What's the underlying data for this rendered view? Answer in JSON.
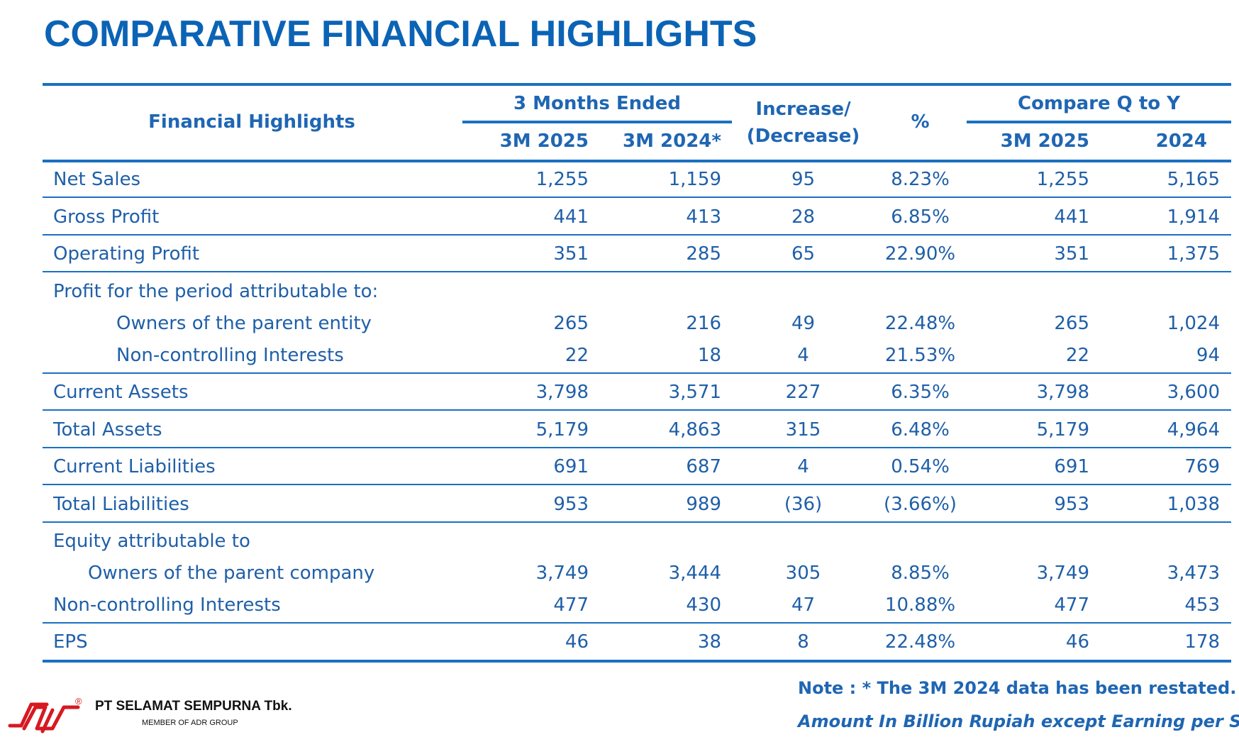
{
  "title": "COMPARATIVE FINANCIAL HIGHLIGHTS",
  "header": {
    "financial_highlights": "Financial Highlights",
    "three_months_ended": "3 Months Ended",
    "col_3m2025": "3M 2025",
    "col_3m2024": "3M 2024*",
    "increase_line1": "Increase/",
    "increase_line2": "(Decrease)",
    "percent": "%",
    "compare_q_to_y": "Compare Q to Y",
    "col_q_3m2025": "3M 2025",
    "col_q_2024": "2024"
  },
  "rows": [
    {
      "label": "Net Sales",
      "v": [
        "1,255",
        "1,159",
        "95",
        "8.23%",
        "1,255",
        "5,165"
      ]
    },
    {
      "label": "Gross Profit",
      "v": [
        "441",
        "413",
        "28",
        "6.85%",
        "441",
        "1,914"
      ]
    },
    {
      "label": "Operating Profit",
      "v": [
        "351",
        "285",
        "65",
        "22.90%",
        "351",
        "1,375"
      ]
    },
    {
      "label": "Profit for the period attributable to:",
      "v": [
        "",
        "",
        "",
        "",
        "",
        ""
      ]
    },
    {
      "label": "Owners of the parent entity",
      "v": [
        "265",
        "216",
        "49",
        "22.48%",
        "265",
        "1,024"
      ]
    },
    {
      "label": "Non-controlling Interests",
      "v": [
        "22",
        "18",
        "4",
        "21.53%",
        "22",
        "94"
      ]
    },
    {
      "label": "Current Assets",
      "v": [
        "3,798",
        "3,571",
        "227",
        "6.35%",
        "3,798",
        "3,600"
      ]
    },
    {
      "label": "Total Assets",
      "v": [
        "5,179",
        "4,863",
        "315",
        "6.48%",
        "5,179",
        "4,964"
      ]
    },
    {
      "label": "Current Liabilities",
      "v": [
        "691",
        "687",
        "4",
        "0.54%",
        "691",
        "769"
      ]
    },
    {
      "label": "Total Liabilities",
      "v": [
        "953",
        "989",
        "(36)",
        "(3.66%)",
        "953",
        "1,038"
      ]
    },
    {
      "label": "Equity attributable to",
      "v": [
        "",
        "",
        "",
        "",
        "",
        ""
      ]
    },
    {
      "label": "Owners of the parent company",
      "v": [
        "3,749",
        "3,444",
        "305",
        "8.85%",
        "3,749",
        "3,473"
      ]
    },
    {
      "label": "Non-controlling Interests",
      "v": [
        "477",
        "430",
        "47",
        "10.88%",
        "477",
        "453"
      ]
    },
    {
      "label": "EPS",
      "v": [
        "46",
        "38",
        "8",
        "22.48%",
        "46",
        "178"
      ]
    }
  ],
  "note": "Note : * The 3M 2024 data has been restated.",
  "amount_note": "Amount In Billion Rupiah except Earning per Share",
  "company": {
    "name": "PT SELAMAT SEMPURNA Tbk.",
    "member": "MEMBER OF ADR GROUP",
    "registered_mark": "®"
  },
  "colors": {
    "title": "#0b63b5",
    "text": "#1f5fa8",
    "rule": "#1a70c2",
    "logo": "#d71920"
  }
}
